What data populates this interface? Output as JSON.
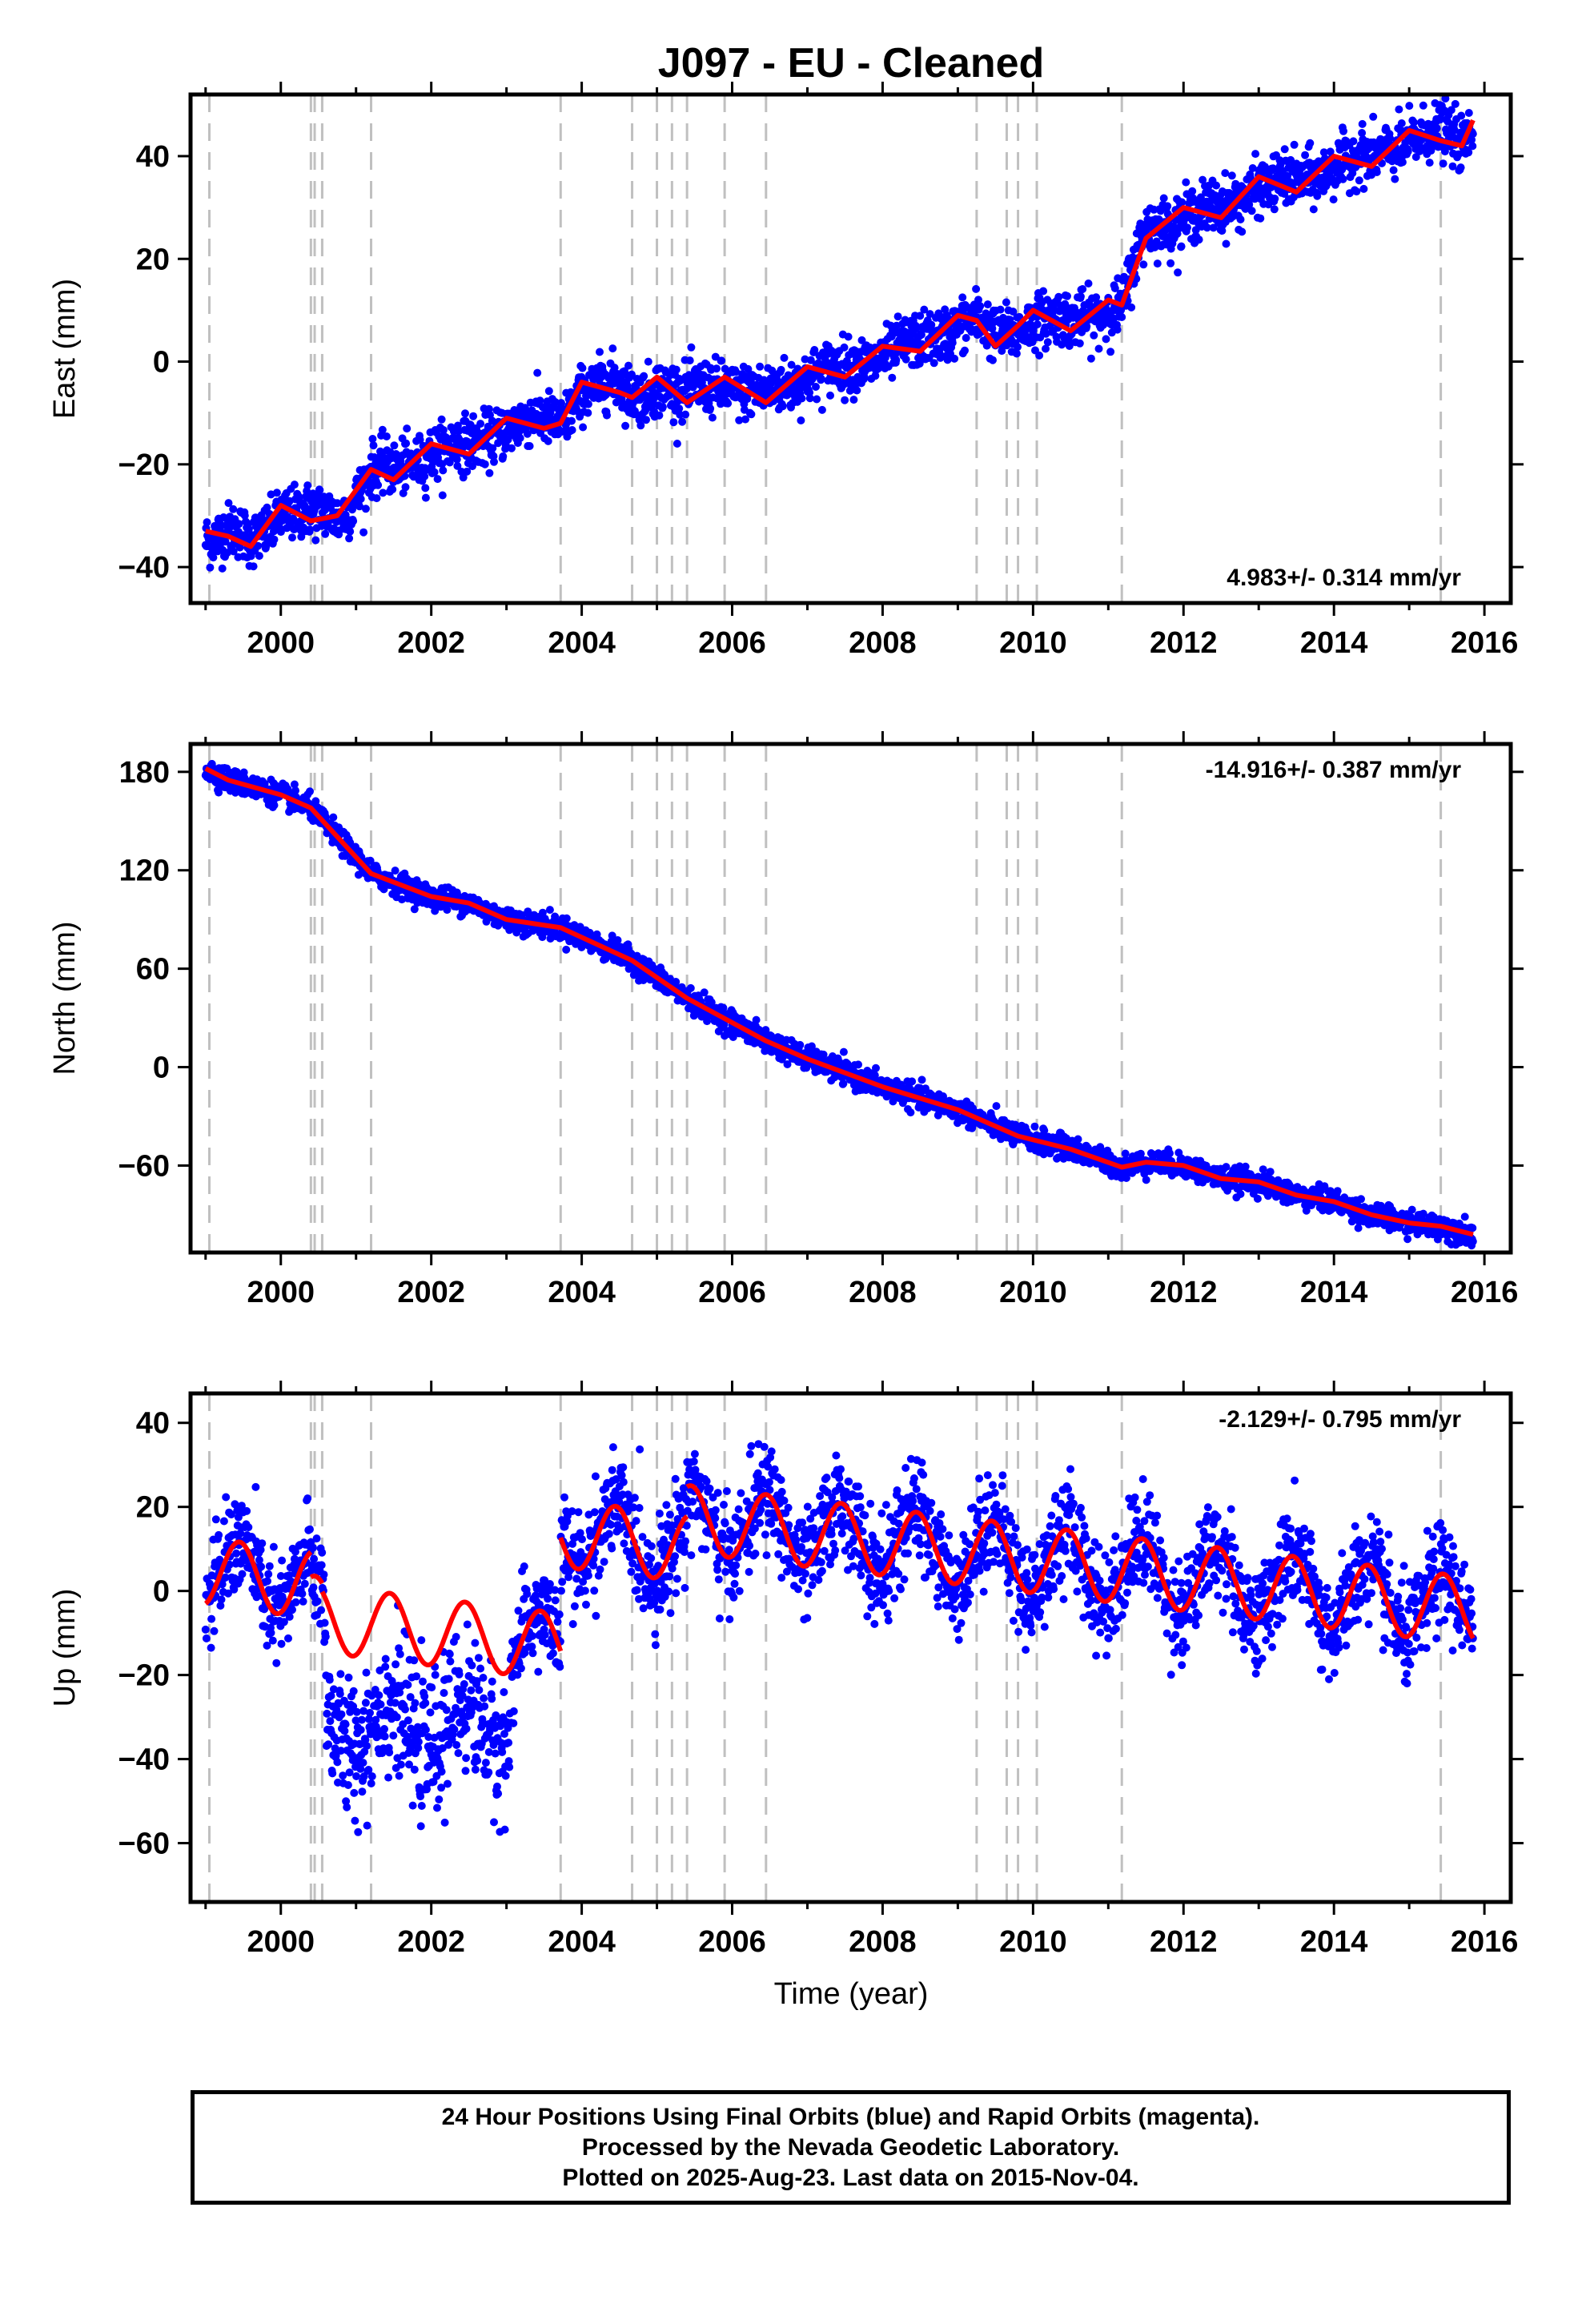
{
  "title": "J097  - EU - Cleaned",
  "x_axis_label": "Time (year)",
  "footer": [
    "24 Hour Positions Using Final Orbits (blue) and Rapid Orbits (magenta).",
    "Processed by the Nevada Geodetic Laboratory.",
    "Plotted on 2025-Aug-23. Last data on 2015-Nov-04."
  ],
  "colors": {
    "data": "#0000ff",
    "model": "#ff0000",
    "offset_line": "#c0c0c0",
    "frame": "#000000"
  },
  "chart_data": [
    {
      "type": "scatter",
      "panel": "east",
      "ylabel": "East (mm)",
      "rate_text": "4.983+/- 0.314 mm/yr",
      "xlim": [
        1998.8,
        2016.35
      ],
      "ylim": [
        -47,
        52
      ],
      "xticks": [
        2000,
        2002,
        2004,
        2006,
        2008,
        2010,
        2012,
        2014,
        2016
      ],
      "yticks": [
        -40,
        -20,
        0,
        20,
        40
      ],
      "offset_epochs": [
        1999.05,
        2000.4,
        2000.45,
        2000.55,
        2001.2,
        2003.72,
        2004.67,
        2005.0,
        2005.2,
        2005.4,
        2005.9,
        2006.45,
        2009.25,
        2009.65,
        2009.8,
        2010.05,
        2011.18,
        2015.42
      ],
      "model": {
        "x": [
          1999.0,
          1999.3,
          1999.6,
          2000.0,
          2000.4,
          2000.75,
          2001.1,
          2001.2,
          2001.5,
          2002.0,
          2002.5,
          2003.0,
          2003.5,
          2003.72,
          2004.0,
          2004.5,
          2004.67,
          2005.0,
          2005.4,
          2005.9,
          2006.45,
          2007.0,
          2007.5,
          2008.0,
          2008.5,
          2009.0,
          2009.25,
          2009.5,
          2009.8,
          2010.0,
          2010.5,
          2011.0,
          2011.18,
          2011.5,
          2012.0,
          2012.5,
          2013.0,
          2013.5,
          2014.0,
          2014.5,
          2015.0,
          2015.42,
          2015.7,
          2015.85
        ],
        "y": [
          -33,
          -34,
          -36,
          -28,
          -31,
          -30,
          -23,
          -21,
          -23,
          -16,
          -18,
          -11,
          -13,
          -12,
          -4,
          -6,
          -7,
          -3,
          -8,
          -3,
          -8,
          -1,
          -3,
          3,
          2,
          9,
          8,
          3,
          7,
          10,
          6,
          12,
          11,
          24,
          30,
          28,
          36,
          33,
          40,
          38,
          45,
          43,
          42,
          47
        ]
      },
      "scatter_spread": 2.6
    },
    {
      "type": "scatter",
      "panel": "north",
      "ylabel": "North (mm)",
      "rate_text": "-14.916+/- 0.387 mm/yr",
      "xlim": [
        1998.8,
        2016.35
      ],
      "ylim": [
        -113,
        197
      ],
      "xticks": [
        2000,
        2002,
        2004,
        2006,
        2008,
        2010,
        2012,
        2014,
        2016
      ],
      "yticks": [
        -60,
        0,
        60,
        120,
        180
      ],
      "offset_epochs": [
        1999.05,
        2000.4,
        2000.45,
        2000.55,
        2001.2,
        2003.72,
        2004.67,
        2005.0,
        2005.2,
        2005.4,
        2005.9,
        2006.45,
        2009.25,
        2009.65,
        2009.8,
        2010.05,
        2011.18,
        2015.42
      ],
      "model": {
        "x": [
          1999.0,
          1999.3,
          2000.0,
          2000.4,
          2001.2,
          2002.0,
          2002.5,
          2003.0,
          2003.72,
          2004.67,
          2005.4,
          2006.45,
          2007.0,
          2008.0,
          2009.0,
          2009.8,
          2010.5,
          2011.18,
          2011.5,
          2012.0,
          2012.5,
          2013.0,
          2013.5,
          2014.0,
          2014.5,
          2015.0,
          2015.42,
          2015.85
        ],
        "y": [
          182,
          175,
          166,
          158,
          118,
          104,
          100,
          90,
          85,
          65,
          42,
          16,
          5,
          -12,
          -26,
          -42,
          -50,
          -61,
          -58,
          -60,
          -68,
          -70,
          -78,
          -82,
          -90,
          -95,
          -97,
          -102
        ]
      },
      "scatter_spread": 3.5
    },
    {
      "type": "scatter",
      "panel": "up",
      "ylabel": "Up (mm)",
      "rate_text": "-2.129+/- 0.795 mm/yr",
      "xlim": [
        1998.8,
        2016.35
      ],
      "ylim": [
        -74,
        47
      ],
      "xticks": [
        2000,
        2002,
        2004,
        2006,
        2008,
        2010,
        2012,
        2014,
        2016
      ],
      "yticks": [
        -60,
        -40,
        -20,
        0,
        20,
        40
      ],
      "offset_epochs": [
        1999.05,
        2000.4,
        2000.45,
        2000.55,
        2001.2,
        2003.72,
        2004.67,
        2005.0,
        2005.2,
        2005.4,
        2005.9,
        2006.45,
        2009.25,
        2009.65,
        2009.8,
        2010.05,
        2011.18,
        2015.42
      ],
      "model": {
        "segments": [
          {
            "x0": 1999.0,
            "x1": 2000.4,
            "offset": -8,
            "trend": -2.1,
            "amp": 8
          },
          {
            "x0": 2000.4,
            "x1": 2000.55,
            "offset": -14,
            "trend": -2.1,
            "amp": 8
          },
          {
            "x0": 2000.55,
            "x1": 2003.72,
            "offset": -16,
            "trend": -2.1,
            "amp": 8
          },
          {
            "x0": 2003.72,
            "x1": 2005.4,
            "offset": 11,
            "trend": -2.1,
            "amp": 8
          },
          {
            "x0": 2005.4,
            "x1": 2015.85,
            "offset": 18,
            "trend": -2.1,
            "amp": 8
          }
        ]
      },
      "scatter_spread": 6,
      "data_extra_segments": [
        {
          "x0": 2000.6,
          "x1": 2003.05,
          "offset": -32,
          "spread": 9
        }
      ]
    }
  ]
}
